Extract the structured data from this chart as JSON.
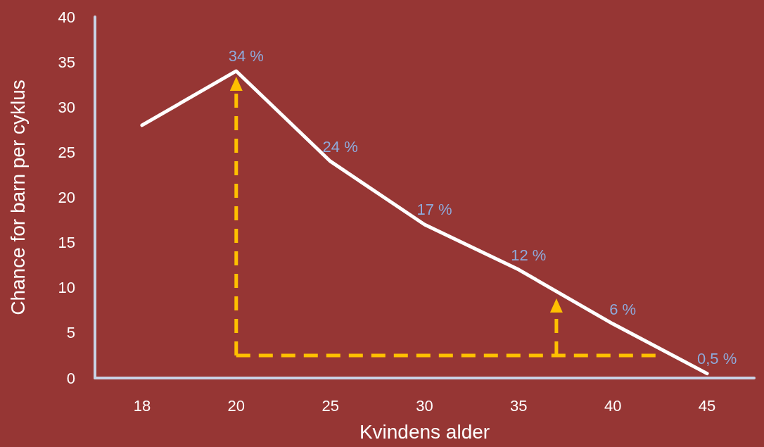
{
  "chart_data": {
    "type": "line",
    "xlabel": "Kvindens alder",
    "ylabel": "Chance for barn per cyklus",
    "categories": [
      "18",
      "20",
      "25",
      "30",
      "35",
      "40",
      "45"
    ],
    "series": [
      {
        "color": "#ffffff",
        "values": [
          28,
          34,
          24,
          17,
          12,
          6,
          0.5
        ],
        "value_labels": [
          null,
          "34 %",
          "24 %",
          "17 %",
          "12 %",
          "6 %",
          "0,5 %"
        ]
      }
    ],
    "ylim": [
      0,
      40
    ],
    "yticks": [
      0,
      5,
      10,
      15,
      20,
      25,
      30,
      35,
      40
    ],
    "grid": false,
    "marker": "none",
    "line_style": "solid",
    "ref_lines": [
      {
        "axis": "y",
        "value": 2.5,
        "color": "#ffc000",
        "line_style": "dashed"
      }
    ]
  }
}
